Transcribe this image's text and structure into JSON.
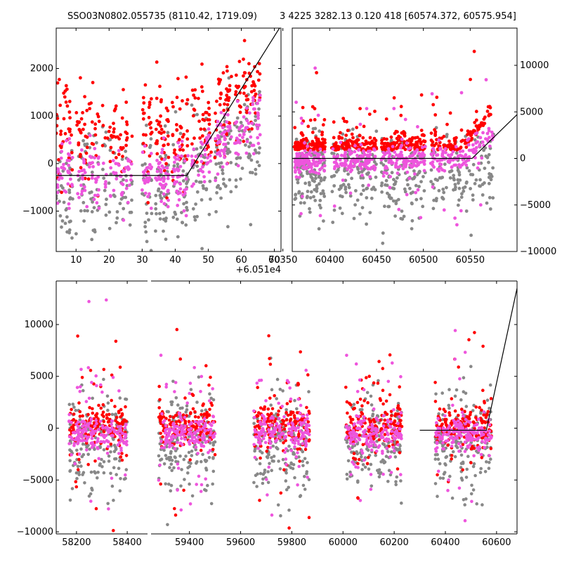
{
  "title": {
    "left": "SSO03N0802.055735 (8110.42, 1719.09)",
    "right": "3 4225 3282.13 0.120 418 [60574.372, 60575.954]"
  },
  "colors": {
    "red": "#ff0000",
    "magenta": "#ee55dd",
    "grey": "#888888",
    "model_line": "#000000"
  },
  "chart_data": [
    {
      "type": "scatter",
      "panel": "top-left",
      "xlim": [
        4,
        72
      ],
      "ylim": [
        -1850,
        2850
      ],
      "x_offset_label": "+6.051e4",
      "xticks": [
        10,
        20,
        30,
        40,
        50,
        60,
        70
      ],
      "xtick_labels": [
        "10",
        "20",
        "30",
        "40",
        "50",
        "60",
        "70"
      ],
      "yticks": [
        -1000,
        0,
        1000,
        2000
      ],
      "ytick_labels": [
        "−1000",
        "0",
        "1000",
        "2000"
      ],
      "y_axis_side": "left",
      "model_line": [
        [
          4,
          -250
        ],
        [
          43.5,
          -250
        ],
        [
          72,
          2900
        ]
      ],
      "series": [
        {
          "color": "red",
          "trend": "rises",
          "spread": 500,
          "base": 400
        },
        {
          "color": "magenta",
          "trend": "rises",
          "spread": 350,
          "base": -200
        },
        {
          "color": "grey",
          "trend": "rises",
          "spread": 600,
          "base": -600
        }
      ]
    },
    {
      "type": "scatter",
      "panel": "top-right",
      "xlim": [
        60360,
        60600
      ],
      "ylim": [
        -10000,
        14000
      ],
      "xticks": [
        60350,
        60400,
        60450,
        60500,
        60550
      ],
      "xtick_labels": [
        "60350",
        "60400",
        "60450",
        "60500",
        "60550"
      ],
      "yticks": [
        -10000,
        -5000,
        0,
        5000,
        10000
      ],
      "ytick_labels": [
        "−10000",
        "−5000",
        "0",
        "5000",
        "10000"
      ],
      "y_axis_side": "right",
      "model_line": [
        [
          60360,
          0
        ],
        [
          60552,
          0
        ],
        [
          60600,
          4700
        ]
      ]
    },
    {
      "type": "scatter",
      "panel": "bottom",
      "ylim": [
        -10200,
        14200
      ],
      "yticks": [
        -10000,
        -5000,
        0,
        5000,
        10000
      ],
      "ytick_labels": [
        "−10000",
        "−5000",
        "0",
        "5000",
        "10000"
      ],
      "y_axis_side": "left",
      "segments": [
        {
          "xlim": [
            58120,
            58480
          ],
          "xticks": [
            58200,
            58400
          ],
          "xtick_labels": [
            "58200",
            "58400"
          ],
          "clusters": [
            [
              58170,
              58400
            ]
          ]
        },
        {
          "xlim": [
            59250,
            60680
          ],
          "xticks": [
            59400,
            59600,
            59800,
            60000,
            60200,
            60400,
            60600
          ],
          "xtick_labels": [
            "59400",
            "59600",
            "59800",
            "60000",
            "60200",
            "60400",
            "60600"
          ],
          "clusters": [
            [
              59280,
              59500
            ],
            [
              59650,
              59870
            ],
            [
              60010,
              60230
            ],
            [
              60360,
              60580
            ]
          ]
        }
      ],
      "model_line": [
        [
          60300,
          -200
        ],
        [
          60560,
          -200
        ],
        [
          60680,
          13500
        ]
      ]
    }
  ]
}
